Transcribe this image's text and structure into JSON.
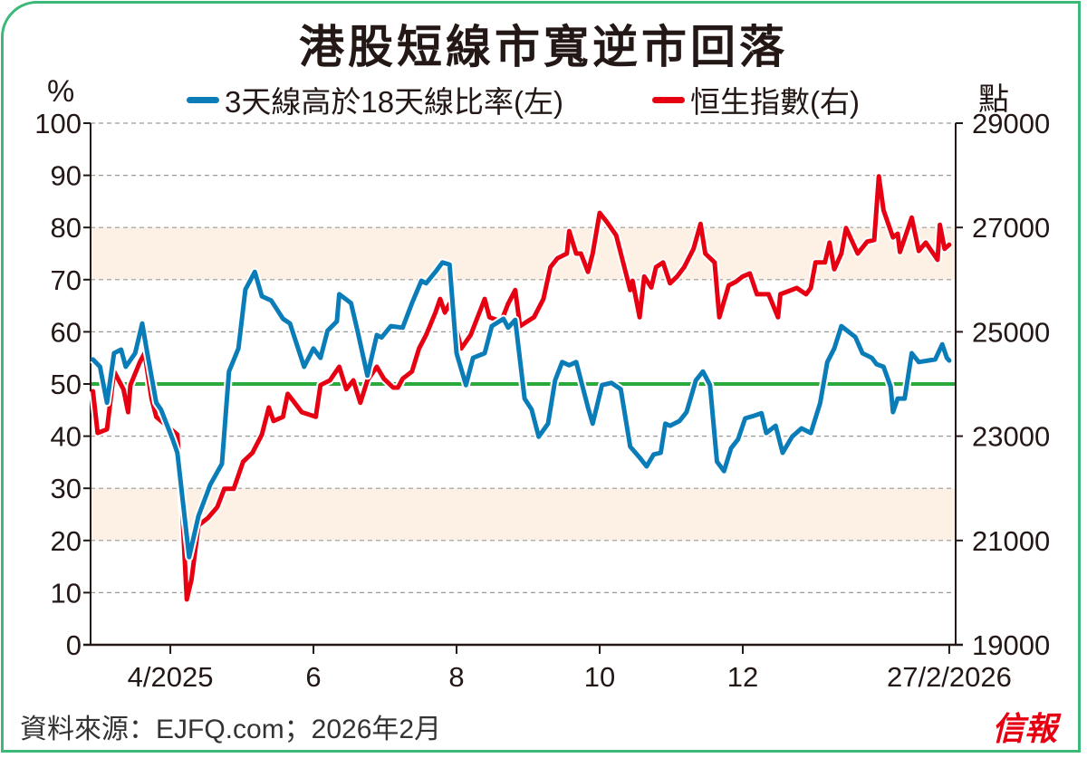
{
  "chart_data": {
    "type": "line",
    "title": "港股短線市寬逆市回落",
    "ylabel_left": "%",
    "ylabel_right": "點",
    "ylim_left": [
      0,
      100
    ],
    "ylim_right": [
      19000,
      29000
    ],
    "yticks_left": [
      "0",
      "10",
      "20",
      "30",
      "40",
      "50",
      "60",
      "70",
      "80",
      "90",
      "100"
    ],
    "yticks_right": [
      "19000",
      "21000",
      "23000",
      "25000",
      "27000",
      "29000"
    ],
    "xlim": [
      "2025-02-26",
      "2026-02-28"
    ],
    "xticks": [
      {
        "date": "2025-04-01",
        "label": "4/2025"
      },
      {
        "date": "2025-06-01",
        "label": "6"
      },
      {
        "date": "2025-08-01",
        "label": "8"
      },
      {
        "date": "2025-10-01",
        "label": "10"
      },
      {
        "date": "2025-12-01",
        "label": "12"
      },
      {
        "date": "2026-02-27",
        "label": "27/2/2026"
      }
    ],
    "grid": true,
    "bands_left": [
      [
        20,
        30
      ],
      [
        70,
        80
      ]
    ],
    "reference_line_left": 50,
    "legend_position": "top",
    "colors": {
      "blue": "#0a7db8",
      "red": "#e60012",
      "green": "#2aaa3a",
      "band": "#fdf0e4",
      "border": "#3cb878"
    },
    "series": [
      {
        "name": "3天線高於18天線比率(左)",
        "axis": "left",
        "color": "#0a7db8",
        "points": [
          [
            "2025-02-27",
            54.7
          ],
          [
            "2025-03-02",
            53.3
          ],
          [
            "2025-03-05",
            46.4
          ],
          [
            "2025-03-08",
            55.9
          ],
          [
            "2025-03-11",
            56.6
          ],
          [
            "2025-03-13",
            53.3
          ],
          [
            "2025-03-17",
            55.9
          ],
          [
            "2025-03-20",
            61.6
          ],
          [
            "2025-03-22",
            56.3
          ],
          [
            "2025-03-26",
            46.4
          ],
          [
            "2025-03-28",
            45.1
          ],
          [
            "2025-04-02",
            39.4
          ],
          [
            "2025-04-04",
            36.8
          ],
          [
            "2025-04-09",
            16.8
          ],
          [
            "2025-04-13",
            24.7
          ],
          [
            "2025-04-18",
            30.7
          ],
          [
            "2025-04-23",
            34.7
          ],
          [
            "2025-04-26",
            52.4
          ],
          [
            "2025-04-30",
            56.8
          ],
          [
            "2025-05-03",
            68.1
          ],
          [
            "2025-05-07",
            71.5
          ],
          [
            "2025-05-10",
            66.8
          ],
          [
            "2025-05-14",
            66.0
          ],
          [
            "2025-05-19",
            62.5
          ],
          [
            "2025-05-22",
            61.6
          ],
          [
            "2025-05-28",
            53.3
          ],
          [
            "2025-06-01",
            56.8
          ],
          [
            "2025-06-04",
            55.0
          ],
          [
            "2025-06-07",
            60.2
          ],
          [
            "2025-06-11",
            62.0
          ],
          [
            "2025-06-12",
            67.2
          ],
          [
            "2025-06-17",
            65.5
          ],
          [
            "2025-06-20",
            59.7
          ],
          [
            "2025-06-24",
            51.6
          ],
          [
            "2025-06-28",
            59.4
          ],
          [
            "2025-06-30",
            58.9
          ],
          [
            "2025-07-04",
            61.1
          ],
          [
            "2025-07-09",
            60.8
          ],
          [
            "2025-07-13",
            65.5
          ],
          [
            "2025-07-17",
            69.8
          ],
          [
            "2025-07-19",
            69.3
          ],
          [
            "2025-07-23",
            71.5
          ],
          [
            "2025-07-26",
            73.3
          ],
          [
            "2025-07-29",
            72.9
          ],
          [
            "2025-08-01",
            55.9
          ],
          [
            "2025-08-05",
            49.8
          ],
          [
            "2025-08-08",
            55.0
          ],
          [
            "2025-08-13",
            55.9
          ],
          [
            "2025-08-16",
            61.1
          ],
          [
            "2025-08-21",
            62.5
          ],
          [
            "2025-08-23",
            60.8
          ],
          [
            "2025-08-26",
            62.3
          ],
          [
            "2025-08-30",
            47.2
          ],
          [
            "2025-09-02",
            45.1
          ],
          [
            "2025-09-05",
            39.9
          ],
          [
            "2025-09-09",
            42.4
          ],
          [
            "2025-09-12",
            50.7
          ],
          [
            "2025-09-15",
            54.2
          ],
          [
            "2025-09-18",
            53.6
          ],
          [
            "2025-09-21",
            54.2
          ],
          [
            "2025-09-26",
            45.5
          ],
          [
            "2025-09-28",
            42.4
          ],
          [
            "2025-10-02",
            49.8
          ],
          [
            "2025-10-06",
            50.2
          ],
          [
            "2025-10-10",
            49.0
          ],
          [
            "2025-10-14",
            38.0
          ],
          [
            "2025-10-18",
            35.9
          ],
          [
            "2025-10-21",
            34.2
          ],
          [
            "2025-10-24",
            36.5
          ],
          [
            "2025-10-27",
            36.8
          ],
          [
            "2025-10-29",
            42.4
          ],
          [
            "2025-10-31",
            42.0
          ],
          [
            "2025-11-04",
            42.9
          ],
          [
            "2025-11-07",
            44.6
          ],
          [
            "2025-11-11",
            50.7
          ],
          [
            "2025-11-14",
            52.4
          ],
          [
            "2025-11-17",
            49.8
          ],
          [
            "2025-11-20",
            35.1
          ],
          [
            "2025-11-23",
            33.3
          ],
          [
            "2025-11-26",
            37.7
          ],
          [
            "2025-11-29",
            39.4
          ],
          [
            "2025-12-02",
            43.4
          ],
          [
            "2025-12-05",
            43.8
          ],
          [
            "2025-12-09",
            44.4
          ],
          [
            "2025-12-11",
            40.6
          ],
          [
            "2025-12-15",
            42.0
          ],
          [
            "2025-12-18",
            36.8
          ],
          [
            "2025-12-22",
            39.9
          ],
          [
            "2025-12-26",
            41.5
          ],
          [
            "2025-12-30",
            40.6
          ],
          [
            "2026-01-03",
            46.4
          ],
          [
            "2026-01-06",
            54.2
          ],
          [
            "2026-01-09",
            56.8
          ],
          [
            "2026-01-12",
            61.1
          ],
          [
            "2026-01-18",
            59.0
          ],
          [
            "2026-01-21",
            55.9
          ],
          [
            "2026-01-25",
            55.0
          ],
          [
            "2026-01-27",
            53.8
          ],
          [
            "2026-01-30",
            53.3
          ],
          [
            "2026-02-02",
            49.5
          ],
          [
            "2026-02-03",
            44.6
          ],
          [
            "2026-02-05",
            47.2
          ],
          [
            "2026-02-08",
            47.2
          ],
          [
            "2026-02-11",
            55.9
          ],
          [
            "2026-02-14",
            54.2
          ],
          [
            "2026-02-18",
            54.5
          ],
          [
            "2026-02-21",
            54.7
          ],
          [
            "2026-02-24",
            57.6
          ],
          [
            "2026-02-26",
            55.0
          ],
          [
            "2026-02-27",
            54.5
          ]
        ]
      },
      {
        "name": "恒生指數(右)",
        "axis": "right",
        "color": "#e60012",
        "points": [
          [
            "2025-02-27",
            23861
          ],
          [
            "2025-03-01",
            23060
          ],
          [
            "2025-03-05",
            23130
          ],
          [
            "2025-03-08",
            24240
          ],
          [
            "2025-03-12",
            23900
          ],
          [
            "2025-03-14",
            23460
          ],
          [
            "2025-03-15",
            23980
          ],
          [
            "2025-03-19",
            24420
          ],
          [
            "2025-03-21",
            24590
          ],
          [
            "2025-03-24",
            23720
          ],
          [
            "2025-03-26",
            23370
          ],
          [
            "2025-04-04",
            23030
          ],
          [
            "2025-04-06",
            21640
          ],
          [
            "2025-04-08",
            19870
          ],
          [
            "2025-04-10",
            20250
          ],
          [
            "2025-04-13",
            21290
          ],
          [
            "2025-04-17",
            21430
          ],
          [
            "2025-04-21",
            21640
          ],
          [
            "2025-04-24",
            21990
          ],
          [
            "2025-04-28",
            21990
          ],
          [
            "2025-05-02",
            22510
          ],
          [
            "2025-05-06",
            22680
          ],
          [
            "2025-05-10",
            23030
          ],
          [
            "2025-05-13",
            23550
          ],
          [
            "2025-05-15",
            23290
          ],
          [
            "2025-05-19",
            23370
          ],
          [
            "2025-05-21",
            23810
          ],
          [
            "2025-05-24",
            23640
          ],
          [
            "2025-05-27",
            23460
          ],
          [
            "2025-06-02",
            23370
          ],
          [
            "2025-06-04",
            23980
          ],
          [
            "2025-06-08",
            24070
          ],
          [
            "2025-06-12",
            24330
          ],
          [
            "2025-06-15",
            23900
          ],
          [
            "2025-06-18",
            24070
          ],
          [
            "2025-06-21",
            23640
          ],
          [
            "2025-06-24",
            24070
          ],
          [
            "2025-06-28",
            24330
          ],
          [
            "2025-07-01",
            24100
          ],
          [
            "2025-07-05",
            23930
          ],
          [
            "2025-07-07",
            23930
          ],
          [
            "2025-07-09",
            24100
          ],
          [
            "2025-07-13",
            24240
          ],
          [
            "2025-07-16",
            24680
          ],
          [
            "2025-07-19",
            24940
          ],
          [
            "2025-07-23",
            25370
          ],
          [
            "2025-07-25",
            25630
          ],
          [
            "2025-07-27",
            25370
          ],
          [
            "2025-07-29",
            25540
          ],
          [
            "2025-08-03",
            24680
          ],
          [
            "2025-08-07",
            24940
          ],
          [
            "2025-08-13",
            25630
          ],
          [
            "2025-08-15",
            25280
          ],
          [
            "2025-08-20",
            25200
          ],
          [
            "2025-08-23",
            25540
          ],
          [
            "2025-08-26",
            25800
          ],
          [
            "2025-08-28",
            25110
          ],
          [
            "2025-09-03",
            25280
          ],
          [
            "2025-09-07",
            25630
          ],
          [
            "2025-09-10",
            26240
          ],
          [
            "2025-09-13",
            26410
          ],
          [
            "2025-09-17",
            26500
          ],
          [
            "2025-09-18",
            26930
          ],
          [
            "2025-09-21",
            26500
          ],
          [
            "2025-09-23",
            26500
          ],
          [
            "2025-09-26",
            26150
          ],
          [
            "2025-09-28",
            26500
          ],
          [
            "2025-10-01",
            27280
          ],
          [
            "2025-10-04",
            27110
          ],
          [
            "2025-10-08",
            26850
          ],
          [
            "2025-10-11",
            26330
          ],
          [
            "2025-10-14",
            25800
          ],
          [
            "2025-10-15",
            25980
          ],
          [
            "2025-10-18",
            25280
          ],
          [
            "2025-10-20",
            26060
          ],
          [
            "2025-10-23",
            25850
          ],
          [
            "2025-10-25",
            26240
          ],
          [
            "2025-10-28",
            26330
          ],
          [
            "2025-10-31",
            25930
          ],
          [
            "2025-11-03",
            26060
          ],
          [
            "2025-11-06",
            26240
          ],
          [
            "2025-11-10",
            26590
          ],
          [
            "2025-11-13",
            27070
          ],
          [
            "2025-11-15",
            26500
          ],
          [
            "2025-11-19",
            26330
          ],
          [
            "2025-11-21",
            25280
          ],
          [
            "2025-11-25",
            25890
          ],
          [
            "2025-11-28",
            25960
          ],
          [
            "2025-12-01",
            26060
          ],
          [
            "2025-12-04",
            26120
          ],
          [
            "2025-12-07",
            25720
          ],
          [
            "2025-12-12",
            25720
          ],
          [
            "2025-12-16",
            25280
          ],
          [
            "2025-12-17",
            25720
          ],
          [
            "2025-12-20",
            25770
          ],
          [
            "2025-12-24",
            25840
          ],
          [
            "2025-12-28",
            25720
          ],
          [
            "2025-12-30",
            25840
          ],
          [
            "2026-01-01",
            26330
          ],
          [
            "2026-01-05",
            26330
          ],
          [
            "2026-01-07",
            26710
          ],
          [
            "2026-01-09",
            26200
          ],
          [
            "2026-01-12",
            26500
          ],
          [
            "2026-01-14",
            26990
          ],
          [
            "2026-01-19",
            26500
          ],
          [
            "2026-01-23",
            26730
          ],
          [
            "2026-01-26",
            26760
          ],
          [
            "2026-01-28",
            27980
          ],
          [
            "2026-01-30",
            27330
          ],
          [
            "2026-02-03",
            26810
          ],
          [
            "2026-02-05",
            26880
          ],
          [
            "2026-02-06",
            26530
          ],
          [
            "2026-02-11",
            27190
          ],
          [
            "2026-02-14",
            26550
          ],
          [
            "2026-02-17",
            26710
          ],
          [
            "2026-02-22",
            26380
          ],
          [
            "2026-02-23",
            27050
          ],
          [
            "2026-02-25",
            26590
          ],
          [
            "2026-02-27",
            26670
          ]
        ]
      }
    ]
  },
  "legend": {
    "blue_label": "3天線高於18天線比率(左)",
    "red_label": "恒生指數(右)"
  },
  "footer": {
    "source": "資料來源：EJFQ.com；2026年2月"
  },
  "logo": {
    "text": "信報"
  }
}
